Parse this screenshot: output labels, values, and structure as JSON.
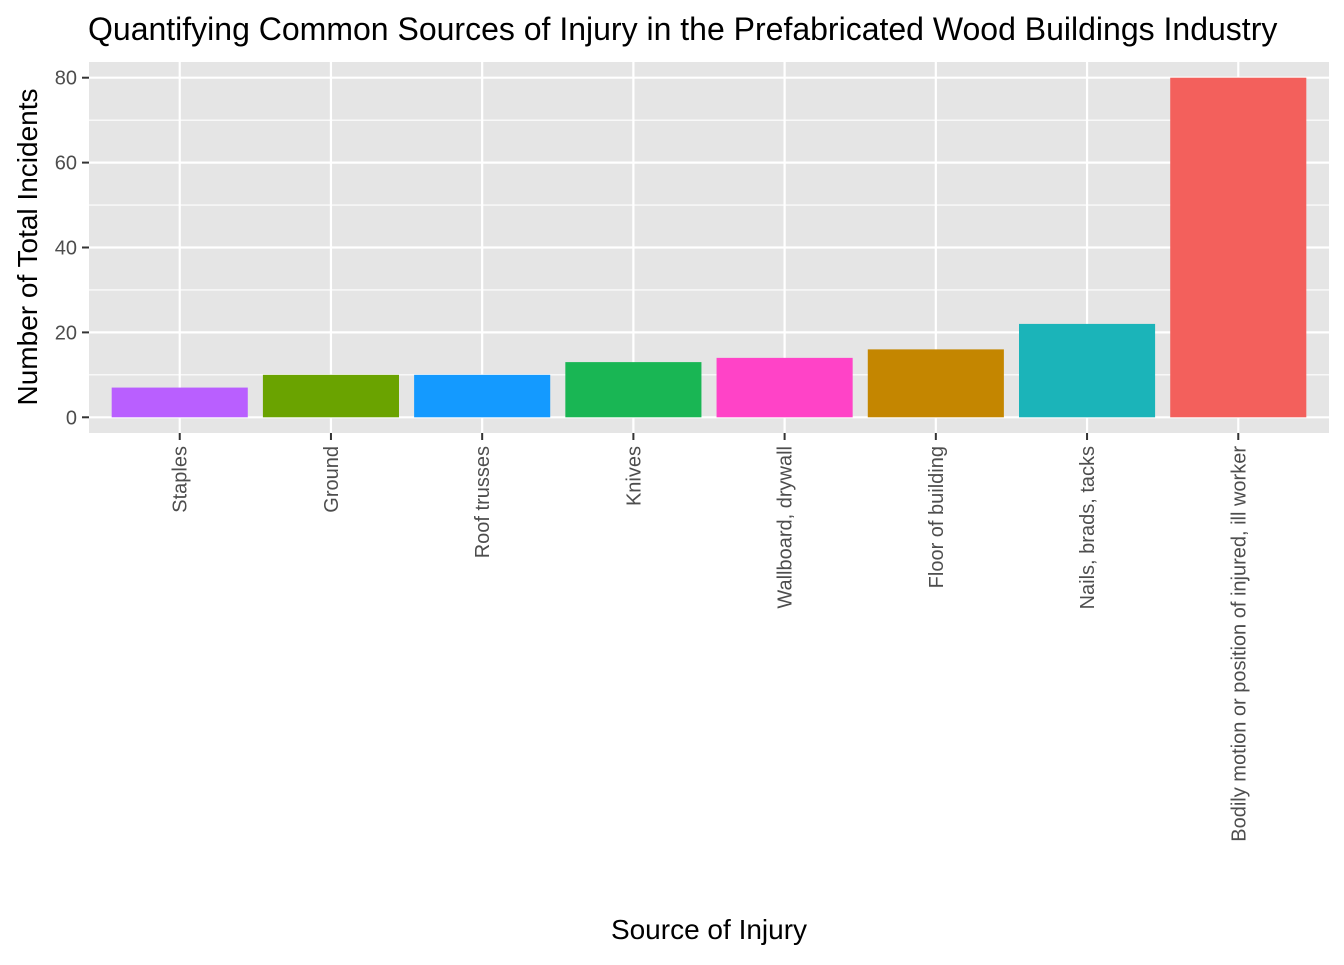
{
  "chart_data": {
    "type": "bar",
    "title": "Quantifying Common Sources of Injury in the Prefabricated Wood Buildings Industry",
    "xlabel": "Source of Injury",
    "ylabel": "Number of Total Incidents",
    "categories": [
      "Staples",
      "Ground",
      "Roof trusses",
      "Knives",
      "Wallboard, drywall",
      "Floor of building",
      "Nails, brads, tacks",
      "Bodily motion or position of injured, ill worker"
    ],
    "values": [
      7,
      10,
      10,
      13,
      14,
      16,
      22,
      80
    ],
    "colors": [
      "#B95FFF",
      "#6AA300",
      "#149AFF",
      "#19B654",
      "#FF43C7",
      "#C48600",
      "#1BB4B9",
      "#F3605C"
    ],
    "ylim": [
      -3.7,
      83.7
    ],
    "yticks": [
      0,
      20,
      40,
      60,
      80
    ],
    "grid": true,
    "legend": "none",
    "panel_background": "#E5E5E5",
    "grid_color": "#FFFFFF"
  }
}
